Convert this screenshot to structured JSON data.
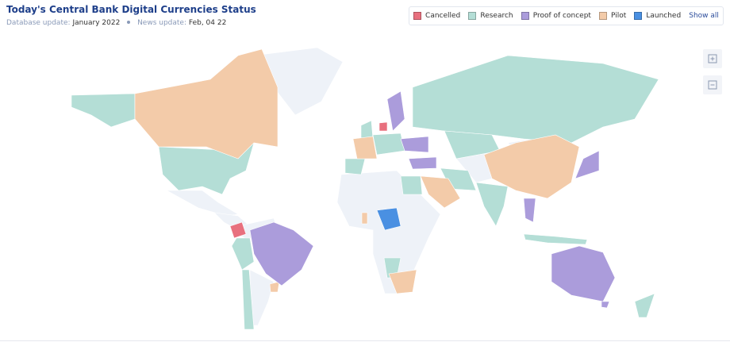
{
  "header": {
    "title": "Today's Central Bank Digital Currencies Status",
    "database_label": "Database update:",
    "database_date": "January 2022",
    "news_label": "News update:",
    "news_date": "Feb, 04 22"
  },
  "legend": {
    "items": [
      {
        "label": "Cancelled",
        "color": "#e8707e"
      },
      {
        "label": "Research",
        "color": "#b4ded6"
      },
      {
        "label": "Proof of concept",
        "color": "#ab9cdb"
      },
      {
        "label": "Pilot",
        "color": "#f3cba9"
      },
      {
        "label": "Launched",
        "color": "#4a90e2"
      }
    ],
    "show_all": "Show all"
  }
}
